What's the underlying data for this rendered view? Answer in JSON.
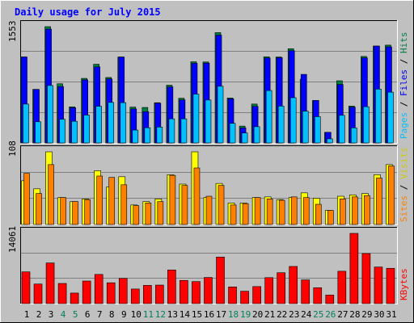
{
  "title": "Daily usage for July 2015",
  "colors": {
    "hits": "#008040",
    "files": "#0000ff",
    "pages": "#00c0ff",
    "visits": "#ffff00",
    "sites": "#ff8000",
    "kbytes": "#ff0000",
    "weekend_label": "#00805c",
    "title_text": "#0000ff"
  },
  "chart_data": [
    {
      "type": "bar",
      "panel": "hits-files-pages",
      "ymax_label": "1553",
      "ylim": [
        0,
        1553
      ],
      "grid": true,
      "legend": [
        {
          "name": "Pages",
          "color": "#00c0ff"
        },
        {
          "name": "Files",
          "color": "#0000ff"
        },
        {
          "name": "Hits",
          "color": "#008040"
        }
      ],
      "categories": [
        "1",
        "2",
        "3",
        "4",
        "5",
        "6",
        "7",
        "8",
        "9",
        "10",
        "11",
        "12",
        "13",
        "14",
        "15",
        "16",
        "17",
        "18",
        "19",
        "20",
        "21",
        "22",
        "23",
        "24",
        "25",
        "26",
        "27",
        "28",
        "29",
        "30",
        "31"
      ],
      "series": [
        {
          "name": "Hits",
          "values": [
            1148,
            715,
            1553,
            790,
            482,
            862,
            1051,
            874,
            1148,
            479,
            474,
            537,
            771,
            597,
            1084,
            1081,
            1473,
            600,
            225,
            519,
            1150,
            1148,
            1258,
            852,
            566,
            142,
            830,
            492,
            1155,
            1294,
            1306
          ]
        },
        {
          "name": "Files",
          "values": [
            1148,
            715,
            1520,
            753,
            470,
            842,
            1016,
            855,
            1147,
            454,
            418,
            531,
            749,
            575,
            1063,
            1066,
            1440,
            588,
            201,
            488,
            1134,
            1138,
            1232,
            916,
            568,
            142,
            780,
            478,
            1136,
            1294,
            1283
          ]
        },
        {
          "name": "Pages",
          "values": [
            519,
            283,
            767,
            316,
            289,
            372,
            490,
            541,
            538,
            172,
            203,
            212,
            322,
            322,
            652,
            573,
            757,
            262,
            133,
            217,
            700,
            492,
            604,
            424,
            351,
            55,
            369,
            201,
            484,
            719,
            678
          ]
        }
      ]
    },
    {
      "type": "bar",
      "panel": "visits-sites",
      "ymax_label": "108",
      "ylim": [
        0,
        108
      ],
      "grid": true,
      "legend": [
        {
          "name": "Sites",
          "color": "#ff8000"
        },
        {
          "name": "Visits",
          "color": "#ffff00"
        }
      ],
      "categories": [
        "1",
        "2",
        "3",
        "4",
        "5",
        "6",
        "7",
        "8",
        "9",
        "10",
        "11",
        "12",
        "13",
        "14",
        "15",
        "16",
        "17",
        "18",
        "19",
        "20",
        "21",
        "22",
        "23",
        "24",
        "25",
        "26",
        "27",
        "28",
        "29",
        "30",
        "31"
      ],
      "series": [
        {
          "name": "Visits",
          "values": [
            65,
            53,
            108,
            40,
            34,
            38,
            80,
            56,
            71,
            29,
            34,
            38,
            74,
            60,
            108,
            40,
            61,
            32,
            32,
            40,
            41,
            37,
            40,
            47,
            39,
            21,
            42,
            44,
            46,
            74,
            89
          ]
        },
        {
          "name": "Sites",
          "values": [
            76,
            46,
            89,
            40,
            34,
            37,
            72,
            70,
            59,
            28,
            32,
            34,
            73,
            58,
            84,
            42,
            58,
            29,
            31,
            40,
            38,
            36,
            41,
            40,
            30,
            21,
            38,
            41,
            43,
            69,
            87
          ]
        }
      ]
    },
    {
      "type": "bar",
      "panel": "kbytes",
      "ymax_label": "14061",
      "ylim": [
        0,
        14061
      ],
      "grid": true,
      "legend": [
        {
          "name": "KBytes",
          "color": "#ff0000"
        }
      ],
      "categories": [
        "1",
        "2",
        "3",
        "4",
        "5",
        "6",
        "7",
        "8",
        "9",
        "10",
        "11",
        "12",
        "13",
        "14",
        "15",
        "16",
        "17",
        "18",
        "19",
        "20",
        "21",
        "22",
        "23",
        "24",
        "25",
        "26",
        "27",
        "28",
        "29",
        "30",
        "31"
      ],
      "series": [
        {
          "name": "KBytes",
          "values": [
            6355,
            3922,
            8138,
            4038,
            2115,
            4522,
            5845,
            4174,
            5047,
            2923,
            3651,
            3712,
            6739,
            4648,
            4414,
            5236,
            9321,
            3341,
            2481,
            3414,
            5206,
            6186,
            7442,
            4749,
            3183,
            1721,
            6484,
            14061,
            10021,
            7323,
            7071
          ]
        }
      ]
    }
  ],
  "weekend_days": [
    4,
    5,
    11,
    12,
    18,
    19,
    25,
    26
  ]
}
